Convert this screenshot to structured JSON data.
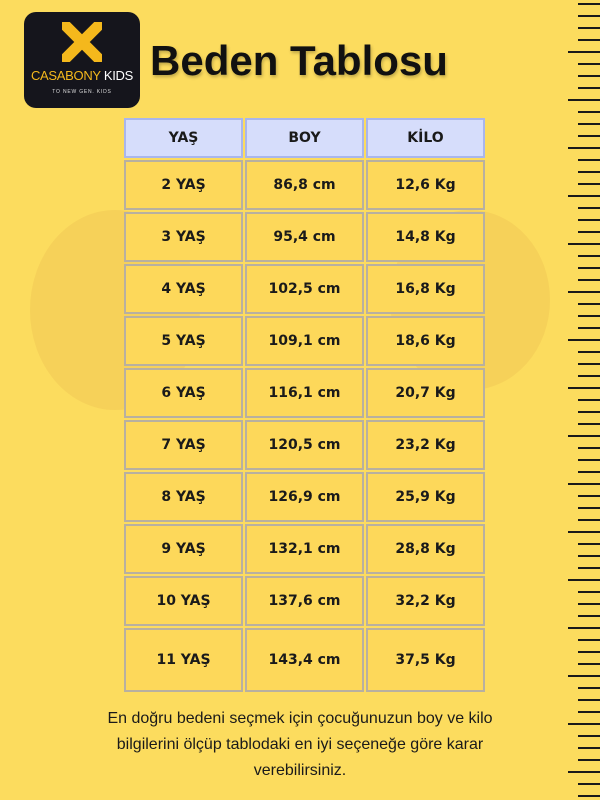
{
  "logo": {
    "brand_part1": "CASABONY",
    "brand_part2": "KIDS",
    "tagline": "TO NEW GEN. KIDS"
  },
  "title": "Beden Tablosu",
  "table": {
    "headers": [
      "YAŞ",
      "BOY",
      "KİLO"
    ],
    "rows": [
      [
        "2 YAŞ",
        "86,8 cm",
        "12,6 Kg"
      ],
      [
        "3 YAŞ",
        "95,4 cm",
        "14,8 Kg"
      ],
      [
        "4 YAŞ",
        "102,5 cm",
        "16,8 Kg"
      ],
      [
        "5 YAŞ",
        "109,1 cm",
        "18,6 Kg"
      ],
      [
        "6 YAŞ",
        "116,1 cm",
        "20,7 Kg"
      ],
      [
        "7 YAŞ",
        "120,5 cm",
        "23,2 Kg"
      ],
      [
        "8 YAŞ",
        "126,9 cm",
        "25,9 Kg"
      ],
      [
        "9 YAŞ",
        "132,1 cm",
        "28,8 Kg"
      ],
      [
        "10 YAŞ",
        "137,6 cm",
        "32,2 Kg"
      ],
      [
        "11 YAŞ",
        "143,4 cm",
        "37,5 Kg"
      ]
    ]
  },
  "footer": {
    "line1": "En doğru bedeni seçmek için çocuğunuzun boy ve kilo",
    "line2": "bilgilerini ölçüp  tablodaki en iyi seçeneğe göre karar",
    "line3": "verebilirsiniz."
  },
  "colors": {
    "background": "#fcdc5e",
    "header_cell": "#d6ddfb",
    "cell": "#fdd85a",
    "logo_bg": "#15151c",
    "logo_accent": "#f4b81c"
  }
}
